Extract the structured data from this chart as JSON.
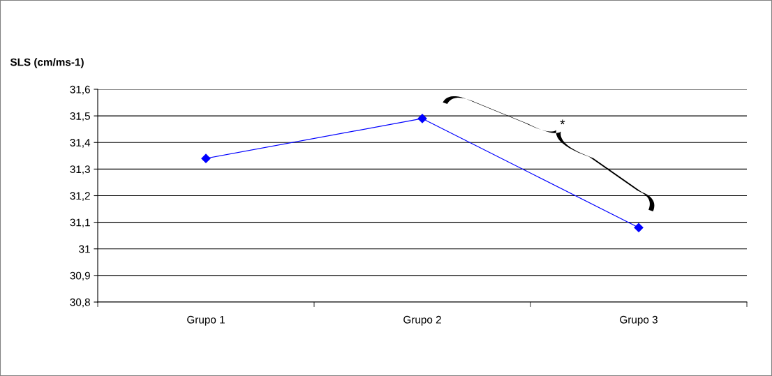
{
  "chart_data": {
    "type": "line",
    "ylabel": "SLS (cm/ms-1)",
    "categories": [
      "Grupo 1",
      "Grupo 2",
      "Grupo 3"
    ],
    "series": [
      {
        "color": "#0000ff",
        "values": [
          31.34,
          31.49,
          31.08
        ]
      }
    ],
    "marker": "diamond",
    "line_style": "solid",
    "ylim": [
      30.8,
      31.6
    ],
    "yticks": [
      {
        "value": 30.8,
        "label": "30,8"
      },
      {
        "value": 30.9,
        "label": "30,9"
      },
      {
        "value": 31,
        "label": "31"
      },
      {
        "value": 31.1,
        "label": "31,1"
      },
      {
        "value": 31.2,
        "label": "31,2"
      },
      {
        "value": 31.3,
        "label": "31,3"
      },
      {
        "value": 31.4,
        "label": "31,4"
      },
      {
        "value": 31.5,
        "label": "31,5"
      },
      {
        "value": 31.6,
        "label": "31,6"
      }
    ],
    "grid": "y",
    "legend": false,
    "annotations": [
      "*"
    ]
  }
}
